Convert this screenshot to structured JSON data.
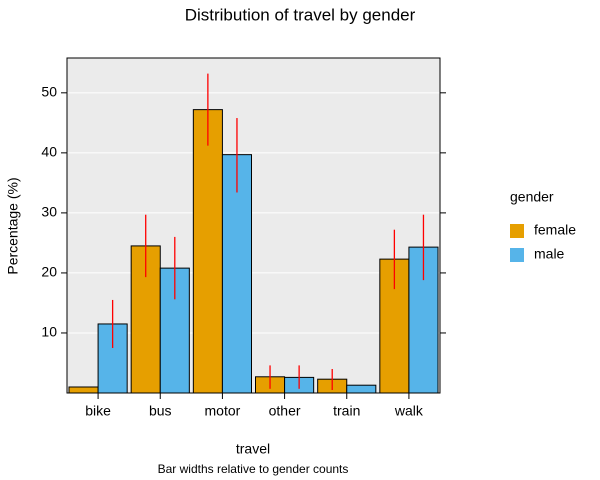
{
  "chart_data": {
    "type": "bar",
    "title": "Distribution of travel by gender",
    "subtitle": "Bar widths relative to gender counts",
    "x_label": "travel",
    "y_label": "Percentage (%)",
    "legend_title": "gender",
    "categories": [
      "bike",
      "bus",
      "motor",
      "other",
      "train",
      "walk"
    ],
    "series": [
      {
        "name": "female",
        "color": "#E69F00",
        "values": [
          1.0,
          24.5,
          47.2,
          2.7,
          2.3,
          22.3
        ],
        "lower": [
          null,
          19.3,
          41.2,
          0.7,
          0.5,
          17.3
        ],
        "upper": [
          null,
          29.7,
          53.2,
          4.6,
          4.0,
          27.2
        ]
      },
      {
        "name": "male",
        "color": "#56B4E9",
        "values": [
          11.5,
          20.8,
          39.7,
          2.6,
          1.3,
          24.3
        ],
        "lower": [
          7.5,
          15.6,
          33.4,
          0.7,
          null,
          18.8
        ],
        "upper": [
          15.5,
          26.0,
          45.8,
          4.6,
          null,
          29.7
        ]
      }
    ],
    "error_color": "#ff0000",
    "ylim": [
      0,
      55.8
    ],
    "yticks": [
      10,
      20,
      30,
      40,
      50
    ],
    "grid": true,
    "legend": "right"
  }
}
